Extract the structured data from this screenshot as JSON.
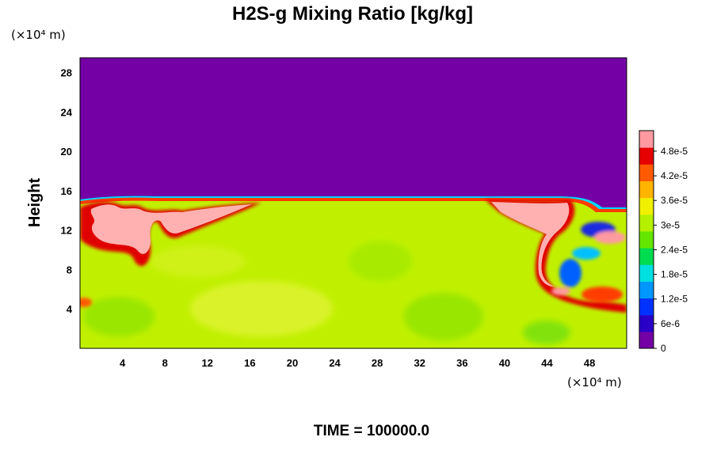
{
  "chart_data": {
    "type": "heatmap",
    "title": "H2S-g Mixing Ratio [kg/kg]",
    "xlabel": "",
    "ylabel": "Height",
    "x_unit": "(×10⁴ m)",
    "y_unit": "(×10⁴ m)",
    "xlim": [
      0,
      51.5
    ],
    "ylim": [
      0,
      29.5
    ],
    "x_ticks": [
      4,
      8,
      12,
      16,
      20,
      24,
      28,
      32,
      36,
      40,
      44,
      48
    ],
    "y_ticks": [
      4,
      8,
      12,
      16,
      20,
      24,
      28
    ],
    "colorbar": {
      "min": 0,
      "max": 5.3e-05,
      "tick_labels": [
        "0",
        "6e-6",
        "1.2e-5",
        "1.8e-5",
        "2.4e-5",
        "3e-5",
        "3.6e-5",
        "4.2e-5",
        "4.8e-5"
      ],
      "tick_values": [
        0,
        6e-06,
        1.2e-05,
        1.8e-05,
        2.4e-05,
        3e-05,
        3.6e-05,
        4.2e-05,
        4.8e-05
      ],
      "colors": [
        "#7400a5",
        "#2a00c8",
        "#0032ff",
        "#0096ff",
        "#00e0e0",
        "#00dc50",
        "#64e600",
        "#b4f000",
        "#f0f000",
        "#ffb400",
        "#ff5a00",
        "#e60000",
        "#ff9aa0"
      ]
    },
    "fields": {
      "upper_background_value": 0,
      "layer_top_height": 15.5,
      "interior_value": 3.4e-05,
      "left_plume_value": 5.2e-05,
      "right_plume_value": 5.2e-05
    },
    "footer": "TIME = 100000.0"
  },
  "colors": {
    "background": "#ffffff",
    "upper_fill": "#7400a5",
    "interior_fill": "#c0f000",
    "plume_fill": "#ffb0b0",
    "plume_edge": "#e00000"
  }
}
